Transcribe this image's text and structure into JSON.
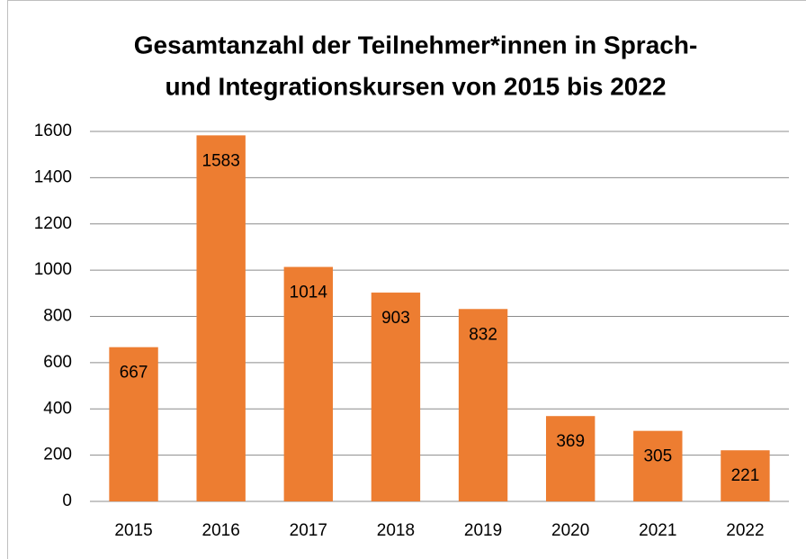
{
  "chart_data": {
    "type": "bar",
    "title": [
      "Gesamtanzahl der Teilnehmer*innen in Sprach-",
      "und Integrationskursen von 2015 bis 2022"
    ],
    "categories": [
      "2015",
      "2016",
      "2017",
      "2018",
      "2019",
      "2020",
      "2021",
      "2022"
    ],
    "values": [
      667,
      1583,
      1014,
      903,
      832,
      369,
      305,
      221
    ],
    "color": "#ed7d31",
    "ylim": [
      0,
      1600
    ],
    "yticks": [
      0,
      200,
      400,
      600,
      800,
      1000,
      1200,
      1400,
      1600
    ],
    "grid": true
  }
}
